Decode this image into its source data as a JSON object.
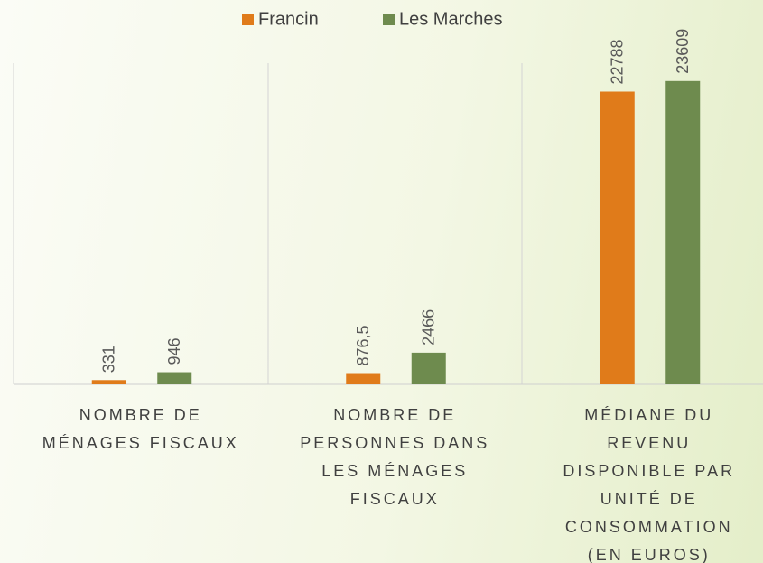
{
  "chart_data": {
    "type": "bar",
    "categories": [
      "NOMBRE DE\nMÉNAGES FISCAUX",
      "NOMBRE DE\nPERSONNES DANS\nLES MÉNAGES\nFISCAUX",
      "MÉDIANE DU\nREVENU\nDISPONIBLE PAR\nUNITÉ DE\nCONSOMMATION\n(EN EUROS)"
    ],
    "series": [
      {
        "name": "Francin",
        "color": "#e07b1a",
        "values": [
          331,
          876.5,
          22788
        ],
        "value_labels": [
          "331",
          "876,5",
          "22788"
        ]
      },
      {
        "name": "Les Marches",
        "color": "#6e8b4e",
        "values": [
          946,
          2466,
          23609
        ]
      }
    ],
    "ylim": [
      0,
      25000
    ],
    "legend": "top"
  }
}
